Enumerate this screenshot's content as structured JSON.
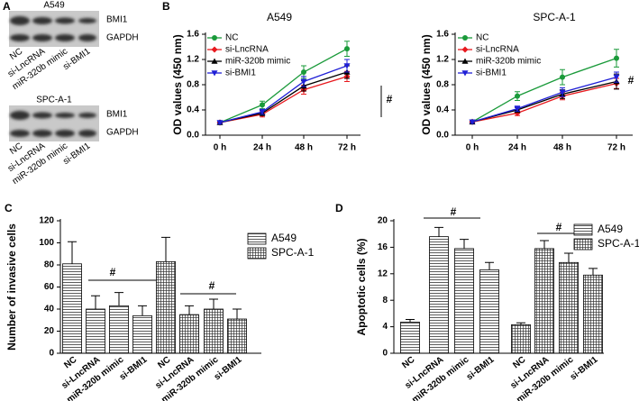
{
  "panel_labels": [
    "A",
    "B",
    "C",
    "D"
  ],
  "blots": [
    {
      "cell_line": "A549",
      "bands": [
        "BMI1",
        "GAPDH"
      ],
      "lanes": [
        "NC",
        "si-LncRNA",
        "miR-320b mimic",
        "si-BMI1"
      ]
    },
    {
      "cell_line": "SPC-A-1",
      "bands": [
        "BMI1",
        "GAPDH"
      ],
      "lanes": [
        "NC",
        "si-LncRNA",
        "miR-320b mimic",
        "si-BMI1"
      ]
    }
  ],
  "chart_data": [
    {
      "type": "line",
      "title": "A549",
      "y_label": "OD values (450 nm)",
      "categories": [
        "0 h",
        "24 h",
        "48 h",
        "72 h"
      ],
      "ylim": [
        0,
        1.6
      ],
      "yticks": [
        {
          "value": 0,
          "label": "0.0"
        },
        0.4,
        0.8,
        1.2,
        1.6
      ],
      "legend": "upper left",
      "annotations": [
        "#"
      ],
      "series": [
        {
          "name": "NC",
          "color": "#1a9a3a",
          "marker": "circle",
          "values": [
            0.2,
            0.48,
            1.0,
            1.37
          ],
          "errors": [
            0.02,
            0.06,
            0.1,
            0.12
          ]
        },
        {
          "name": "si-LncRNA",
          "color": "#e8191e",
          "marker": "diamond",
          "values": [
            0.2,
            0.33,
            0.72,
            0.93
          ],
          "errors": [
            0.02,
            0.04,
            0.07,
            0.08
          ]
        },
        {
          "name": "miR-320b mimic",
          "color": "#000000",
          "marker": "triangle",
          "values": [
            0.2,
            0.35,
            0.78,
            1.0
          ],
          "errors": [
            0.02,
            0.04,
            0.08,
            0.1
          ]
        },
        {
          "name": "si-BMI1",
          "color": "#1f1fd6",
          "marker": "triangle-down",
          "values": [
            0.2,
            0.37,
            0.85,
            1.1
          ],
          "errors": [
            0.02,
            0.04,
            0.08,
            0.1
          ]
        }
      ]
    },
    {
      "type": "line",
      "title": "SPC-A-1",
      "y_label": "OD values (450 nm)",
      "categories": [
        "0 h",
        "24 h",
        "48 h",
        "72 h"
      ],
      "ylim": [
        0,
        1.6
      ],
      "yticks": [
        {
          "value": 0,
          "label": "0.0"
        },
        0.4,
        0.8,
        1.2,
        1.6
      ],
      "legend": "upper left",
      "annotations": [
        "#"
      ],
      "series": [
        {
          "name": "NC",
          "color": "#1a9a3a",
          "marker": "circle",
          "values": [
            0.21,
            0.62,
            0.92,
            1.22
          ],
          "errors": [
            0.02,
            0.07,
            0.12,
            0.14
          ]
        },
        {
          "name": "si-LncRNA",
          "color": "#e8191e",
          "marker": "diamond",
          "values": [
            0.21,
            0.35,
            0.62,
            0.82
          ],
          "errors": [
            0.02,
            0.04,
            0.06,
            0.08
          ]
        },
        {
          "name": "miR-320b mimic",
          "color": "#000000",
          "marker": "triangle",
          "values": [
            0.21,
            0.4,
            0.65,
            0.85
          ],
          "errors": [
            0.02,
            0.04,
            0.07,
            0.12
          ]
        },
        {
          "name": "si-BMI1",
          "color": "#1f1fd6",
          "marker": "triangle-down",
          "values": [
            0.21,
            0.42,
            0.68,
            0.92
          ],
          "errors": [
            0.02,
            0.04,
            0.07,
            0.08
          ]
        }
      ]
    },
    {
      "type": "bar",
      "y_label": "Number of invasive cells",
      "categories": [
        "NC",
        "si-LncRNA",
        "miR-320b mimic",
        "si-BMI1"
      ],
      "ylim": [
        0,
        120
      ],
      "yticks": [
        0,
        20,
        40,
        60,
        80,
        100,
        120
      ],
      "legend": "upper right",
      "annotations": [
        "#",
        "#"
      ],
      "series": [
        {
          "name": "A549",
          "pattern": "horizontal",
          "values": [
            81,
            40,
            43,
            34
          ],
          "errors": [
            20,
            12,
            12,
            9
          ]
        },
        {
          "name": "SPC-A-1",
          "pattern": "grid",
          "values": [
            83,
            35,
            40,
            31
          ],
          "errors": [
            22,
            8,
            9,
            9
          ]
        }
      ]
    },
    {
      "type": "bar",
      "y_label": "Apoptotic cells (%)",
      "categories": [
        "NC",
        "si-LncRNA",
        "miR-320b mimic",
        "si-BMI1"
      ],
      "ylim": [
        0,
        20
      ],
      "yticks": [
        0,
        4,
        8,
        12,
        16,
        20
      ],
      "legend": "upper right",
      "annotations": [
        "#",
        "#"
      ],
      "series": [
        {
          "name": "A549",
          "pattern": "horizontal",
          "values": [
            4.7,
            17.6,
            15.8,
            12.6
          ],
          "errors": [
            0.4,
            1.4,
            1.4,
            1.1
          ]
        },
        {
          "name": "SPC-A-1",
          "pattern": "grid",
          "values": [
            4.3,
            15.8,
            13.7,
            11.8
          ],
          "errors": [
            0.3,
            1.2,
            1.4,
            1.0
          ]
        }
      ]
    }
  ]
}
